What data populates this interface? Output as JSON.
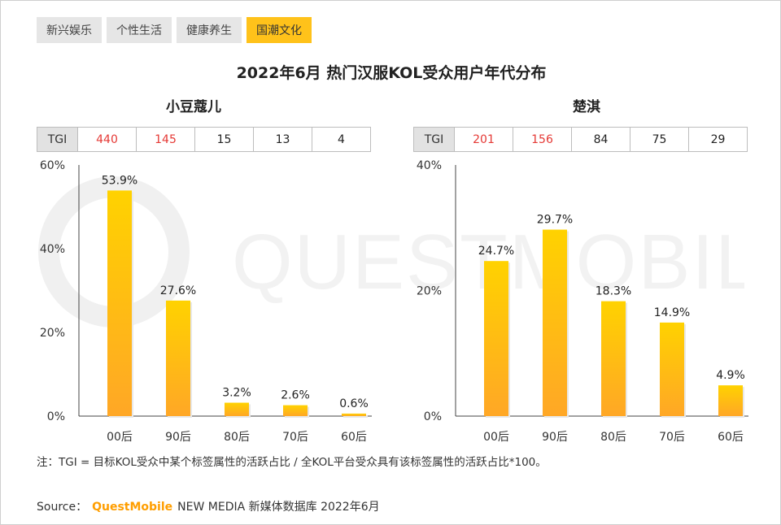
{
  "tabs": [
    {
      "label": "新兴娱乐",
      "active": false
    },
    {
      "label": "个性生活",
      "active": false
    },
    {
      "label": "健康养生",
      "active": false
    },
    {
      "label": "国潮文化",
      "active": true
    }
  ],
  "title": "2022年6月 热门汉服KOL受众用户年代分布",
  "tgi_label": "TGI",
  "watermark": "QUESTMOBILE",
  "chart_data": [
    {
      "type": "bar",
      "title": "小豆蔻儿",
      "categories": [
        "00后",
        "90后",
        "80后",
        "70后",
        "60后"
      ],
      "values": [
        53.9,
        27.6,
        3.2,
        2.6,
        0.6
      ],
      "value_labels": [
        "53.9%",
        "27.6%",
        "3.2%",
        "2.6%",
        "0.6%"
      ],
      "tgi": [
        "440",
        "145",
        "15",
        "13",
        "4"
      ],
      "tgi_highlight": [
        true,
        true,
        false,
        false,
        false
      ],
      "yticks": [
        "0%",
        "20%",
        "40%",
        "60%"
      ],
      "ylim": [
        0,
        60
      ],
      "grid": false
    },
    {
      "type": "bar",
      "title": "楚淇",
      "categories": [
        "00后",
        "90后",
        "80后",
        "70后",
        "60后"
      ],
      "values": [
        24.7,
        29.7,
        18.3,
        14.9,
        4.9
      ],
      "value_labels": [
        "24.7%",
        "29.7%",
        "18.3%",
        "14.9%",
        "4.9%"
      ],
      "tgi": [
        "201",
        "156",
        "84",
        "75",
        "29"
      ],
      "tgi_highlight": [
        true,
        true,
        false,
        false,
        false
      ],
      "yticks": [
        "0%",
        "20%",
        "40%"
      ],
      "ylim": [
        0,
        40
      ],
      "grid": false
    }
  ],
  "colors": {
    "bar_top": "#ffd200",
    "bar_bottom": "#ffa726",
    "tgi_hot": "#e53935",
    "brand": "#ff9e00",
    "tab_active": "#ffc21a"
  },
  "note": "注：TGI = 目标KOL受众中某个标签属性的活跃占比 / 全KOL平台受众具有该标签属性的活跃占比*100。",
  "source": {
    "prefix": "Source：",
    "brand": "QuestMobile",
    "rest": "NEW MEDIA 新媒体数据库 2022年6月"
  }
}
